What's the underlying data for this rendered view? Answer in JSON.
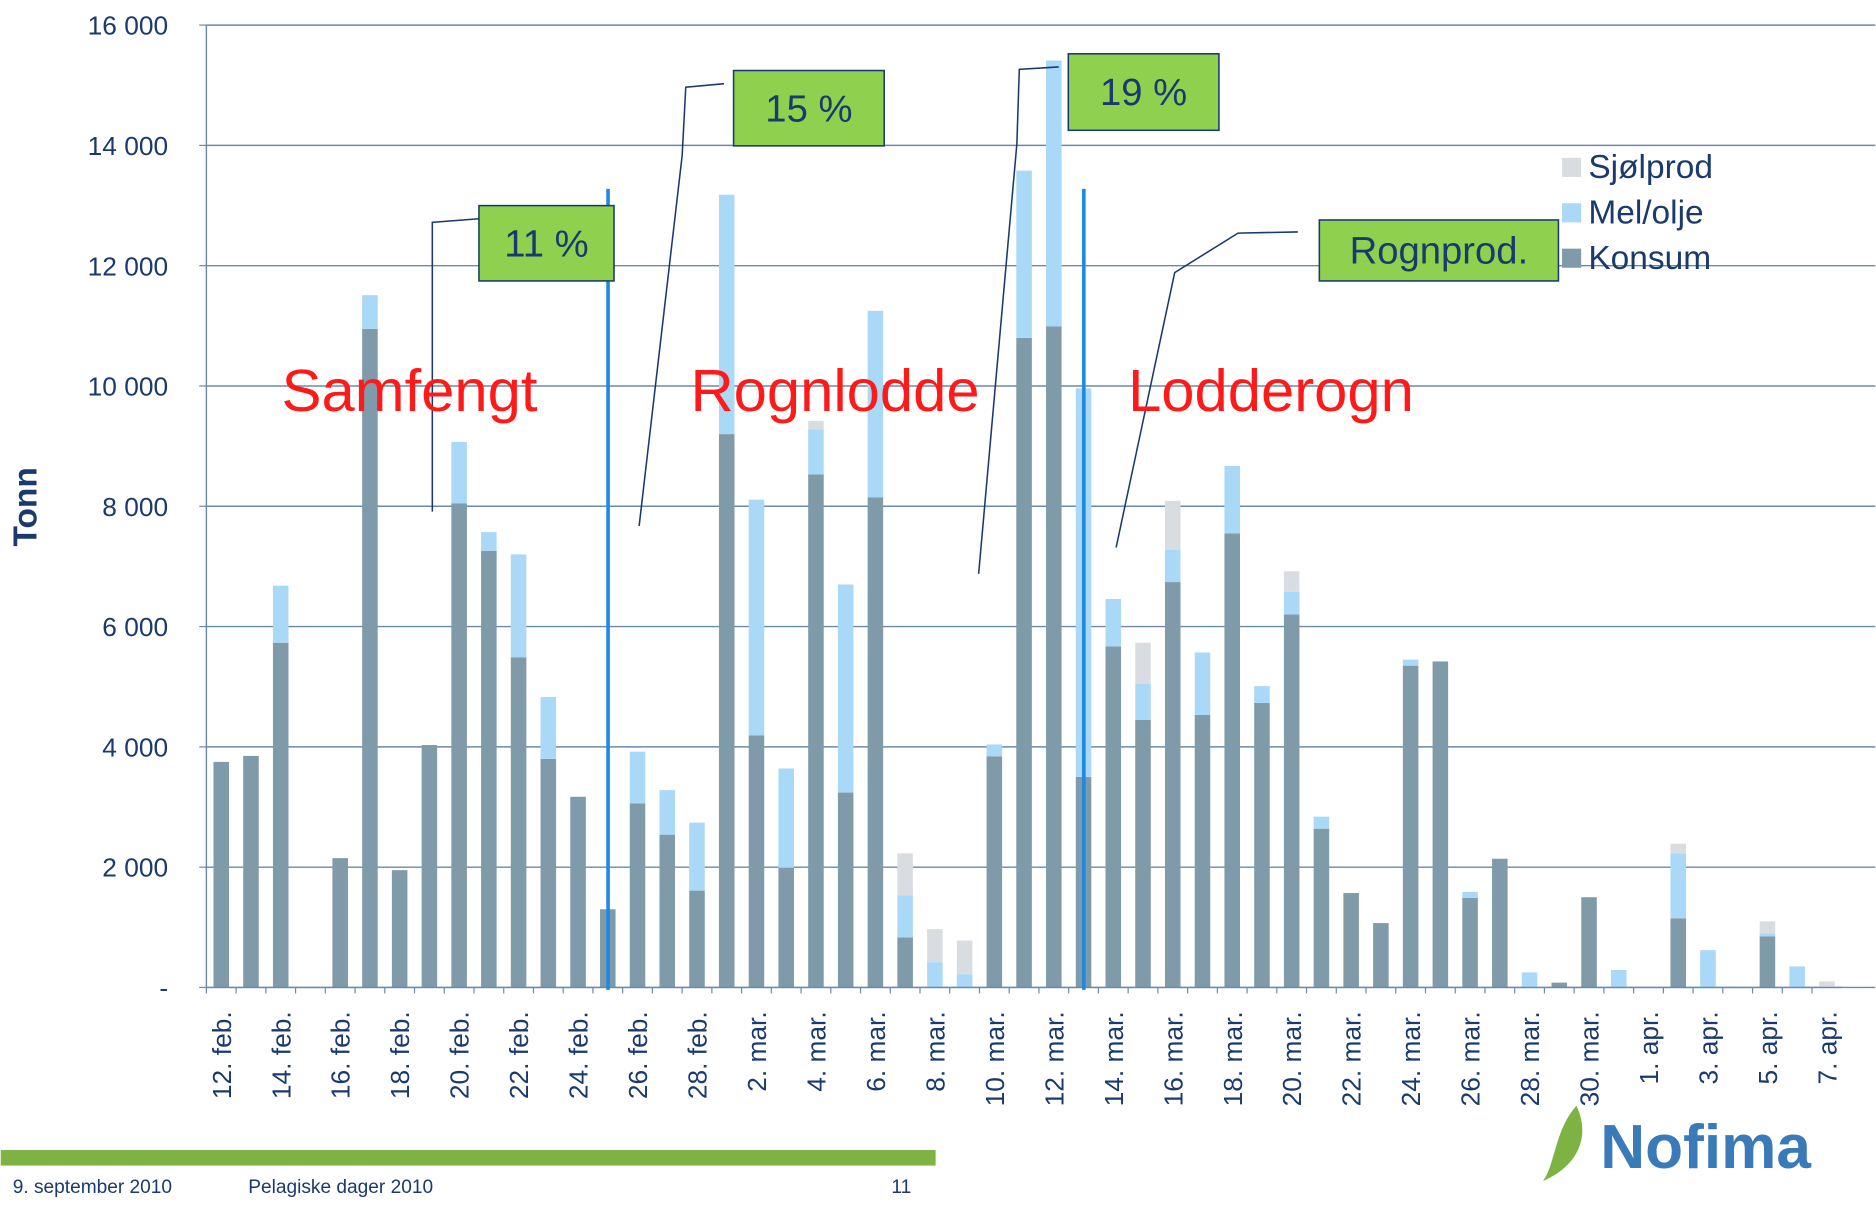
{
  "chart_data": {
    "type": "bar",
    "stacked": true,
    "y_label": "Tonn",
    "categories": [
      "12. feb.",
      null,
      "14. feb.",
      null,
      "16. feb.",
      null,
      "18. feb.",
      null,
      "20. feb.",
      null,
      "22. feb.",
      null,
      "24. feb.",
      null,
      "26. feb.",
      null,
      "28. feb.",
      null,
      "2. mar.",
      null,
      "4. mar.",
      null,
      "6. mar.",
      null,
      "8. mar.",
      null,
      "10. mar.",
      null,
      "12. mar.",
      null,
      "14. mar.",
      null,
      "16. mar.",
      null,
      "18. mar.",
      null,
      "20. mar.",
      null,
      "22. mar.",
      null,
      "24. mar.",
      null,
      "26. mar.",
      null,
      "28. mar.",
      null,
      "30. mar.",
      null,
      "1. apr.",
      null,
      "3. apr.",
      null,
      "5. apr.",
      null,
      "7. apr."
    ],
    "series": [
      {
        "name": "Konsum",
        "color": "#7f9aa8",
        "values": [
          3750,
          3850,
          5730,
          0,
          2150,
          10950,
          1950,
          4030,
          8050,
          7260,
          5490,
          3800,
          3170,
          1300,
          3060,
          2540,
          1610,
          9200,
          4190,
          1990,
          8530,
          3240,
          8150,
          830,
          0,
          0,
          3840,
          10800,
          10990,
          3500,
          5670,
          4450,
          6740,
          4530,
          7550,
          4730,
          6200,
          2640,
          1570,
          1070,
          5350,
          5420,
          1490,
          2140,
          0,
          80,
          1500,
          0,
          0,
          1150,
          0,
          0,
          850,
          0,
          0
        ]
      },
      {
        "name": "Mel/olje",
        "color": "#aad8f7",
        "values": [
          0,
          0,
          950,
          0,
          0,
          560,
          0,
          0,
          1020,
          310,
          1710,
          1030,
          0,
          0,
          860,
          740,
          1130,
          3980,
          3920,
          1650,
          750,
          3460,
          3100,
          700,
          420,
          220,
          200,
          2780,
          4420,
          6460,
          790,
          600,
          540,
          1040,
          1120,
          280,
          380,
          200,
          0,
          0,
          100,
          0,
          100,
          0,
          250,
          0,
          0,
          290,
          0,
          1080,
          620,
          0,
          50,
          350,
          0
        ]
      },
      {
        "name": "Sjølprod",
        "color": "#d9dde2",
        "values": [
          0,
          0,
          0,
          0,
          0,
          0,
          0,
          0,
          0,
          0,
          0,
          0,
          0,
          0,
          0,
          0,
          0,
          0,
          0,
          0,
          140,
          0,
          0,
          700,
          550,
          560,
          0,
          0,
          0,
          0,
          0,
          680,
          810,
          0,
          0,
          0,
          340,
          0,
          0,
          0,
          0,
          0,
          0,
          0,
          0,
          0,
          0,
          0,
          0,
          160,
          0,
          0,
          200,
          0,
          100
        ]
      }
    ],
    "ylim": [
      0,
      16000
    ],
    "yticks": [
      {
        "value": 0,
        "label": "-"
      },
      {
        "value": 2000,
        "label": "2 000"
      },
      {
        "value": 4000,
        "label": "4 000"
      },
      {
        "value": 6000,
        "label": "6 000"
      },
      {
        "value": 8000,
        "label": "8 000"
      },
      {
        "value": 10000,
        "label": "10 000"
      },
      {
        "value": 12000,
        "label": "12 000"
      },
      {
        "value": 14000,
        "label": "14 000"
      },
      {
        "value": 16000,
        "label": "16 000"
      }
    ],
    "grid": true,
    "legend": "upper right",
    "annotations": [
      "11 %",
      "15 %",
      "19 %",
      "Rognprod.",
      "Samfengt",
      "Rognlodde",
      "Lodderogn"
    ]
  },
  "footer": {
    "date": "9. september 2010",
    "event": "Pelagiske dager 2010",
    "page": "11",
    "logo": "Nofima"
  }
}
